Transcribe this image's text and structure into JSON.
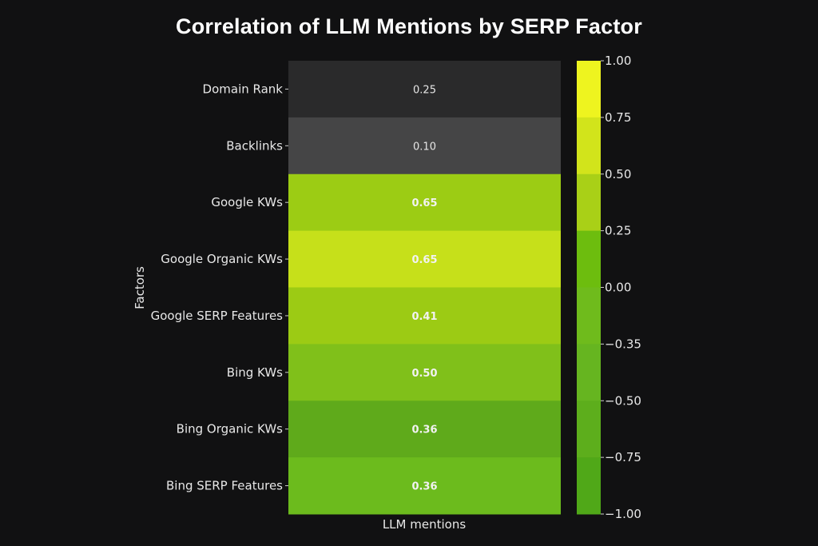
{
  "chart_data": {
    "type": "heatmap",
    "title": "Correlation of LLM Mentions by SERP Factor",
    "xlabel": "LLM mentions",
    "ylabel": "Factors",
    "x_categories": [
      "LLM mentions"
    ],
    "y_categories": [
      "Domain Rank",
      "Backlinks",
      "Google KWs",
      "Google Organic KWs",
      "Google SERP Features",
      "Bing KWs",
      "Bing Organic KWs",
      "Bing SERP Features"
    ],
    "values": [
      0.25,
      0.1,
      0.65,
      0.65,
      0.41,
      0.5,
      0.36,
      0.36
    ],
    "value_labels": [
      "0.25",
      "0.10",
      "0.65",
      "0.65",
      "0.41",
      "0.50",
      "0.36",
      "0.36"
    ],
    "cell_colors": [
      "#2a2a2b",
      "#454546",
      "#9ccc14",
      "#c6e01a",
      "#9ccb14",
      "#80c01a",
      "#5faa1b",
      "#6cbb1d"
    ],
    "colorbar": {
      "ticks": [
        {
          "value": 1.0,
          "label": "1.00"
        },
        {
          "value": 0.75,
          "label": "0.75"
        },
        {
          "value": 0.5,
          "label": "0.50"
        },
        {
          "value": 0.25,
          "label": "0.25"
        },
        {
          "value": 0.0,
          "label": "0.00"
        },
        {
          "value": -0.35,
          "label": "−0.35"
        },
        {
          "value": -0.5,
          "label": "−0.50"
        },
        {
          "value": -0.75,
          "label": "−0.75"
        },
        {
          "value": -1.0,
          "label": "−1.00"
        }
      ],
      "segment_colors": [
        "#eef41f",
        "#d2e41b",
        "#a9d017",
        "#6dbd0e",
        "#6fbb1c",
        "#66b520",
        "#5dae1c",
        "#50a818"
      ],
      "range": [
        -1.0,
        1.0
      ]
    }
  }
}
